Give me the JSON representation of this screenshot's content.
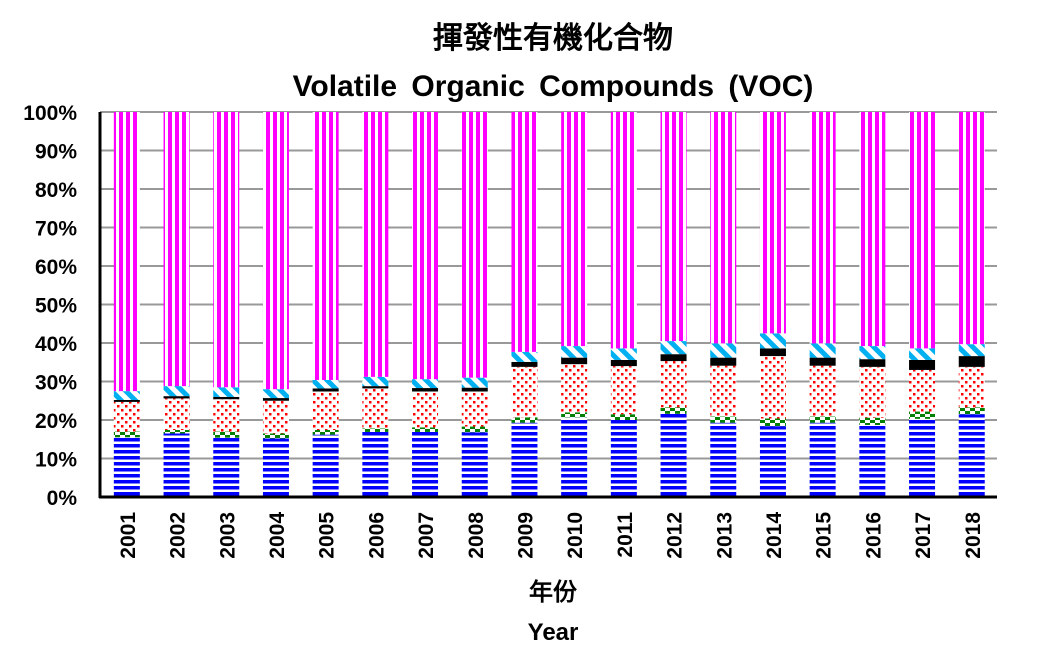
{
  "chart_data": {
    "type": "bar",
    "stacked": true,
    "normalized": true,
    "title": "揮發性有機化合物",
    "subtitle": "Volatile Organic Compounds (VOC)",
    "xlabel": "年份",
    "xlabel2": "Year",
    "ylabel": "",
    "ylim": [
      0,
      100
    ],
    "yticks": [
      "0%",
      "10%",
      "20%",
      "30%",
      "40%",
      "50%",
      "60%",
      "70%",
      "80%",
      "90%",
      "100%"
    ],
    "grid": true,
    "legend": "none",
    "categories": [
      "2001",
      "2002",
      "2003",
      "2004",
      "2005",
      "2006",
      "2007",
      "2008",
      "2009",
      "2010",
      "2011",
      "2012",
      "2013",
      "2014",
      "2015",
      "2016",
      "2017",
      "2018"
    ],
    "series": [
      {
        "color": "#0000ff",
        "pattern": "horizontal-stripes",
        "values": [
          15.5,
          16.5,
          15.4,
          15.2,
          16.2,
          16.9,
          16.9,
          16.8,
          19.3,
          20.7,
          20.0,
          21.6,
          19.3,
          18.4,
          19.3,
          18.7,
          20.3,
          21.5
        ]
      },
      {
        "color": "#008000",
        "pattern": "checker",
        "values": [
          1.5,
          0.9,
          1.6,
          1.3,
          1.2,
          0.9,
          1.2,
          1.5,
          1.4,
          1.3,
          1.5,
          1.7,
          1.6,
          2.0,
          1.6,
          1.9,
          1.9,
          1.8
        ]
      },
      {
        "color": "#ff0000",
        "pattern": "dots",
        "values": [
          7.7,
          8.2,
          8.4,
          8.5,
          10.0,
          10.4,
          9.3,
          9.1,
          13.1,
          12.5,
          12.5,
          12.0,
          13.2,
          16.2,
          13.2,
          13.2,
          10.8,
          10.5
        ]
      },
      {
        "color": "#000000",
        "pattern": "solid",
        "values": [
          0.5,
          0.6,
          0.6,
          0.7,
          0.8,
          0.6,
          0.9,
          1.0,
          1.3,
          1.7,
          1.6,
          1.8,
          2.1,
          2.0,
          2.1,
          2.0,
          2.6,
          2.8
        ]
      },
      {
        "color": "#00b0f0",
        "pattern": "diagonal-stripes",
        "values": [
          2.3,
          2.6,
          2.5,
          2.3,
          2.2,
          2.4,
          2.3,
          2.6,
          2.6,
          3.0,
          3.0,
          3.4,
          3.7,
          3.9,
          3.7,
          3.4,
          3.0,
          3.1
        ]
      },
      {
        "color": "#ff00ff",
        "pattern": "vertical-stripes",
        "values": [
          72.5,
          71.2,
          71.5,
          72.0,
          69.6,
          68.8,
          69.4,
          69.0,
          62.3,
          60.8,
          61.4,
          59.5,
          60.1,
          57.5,
          60.1,
          60.8,
          61.4,
          60.3
        ]
      }
    ]
  }
}
